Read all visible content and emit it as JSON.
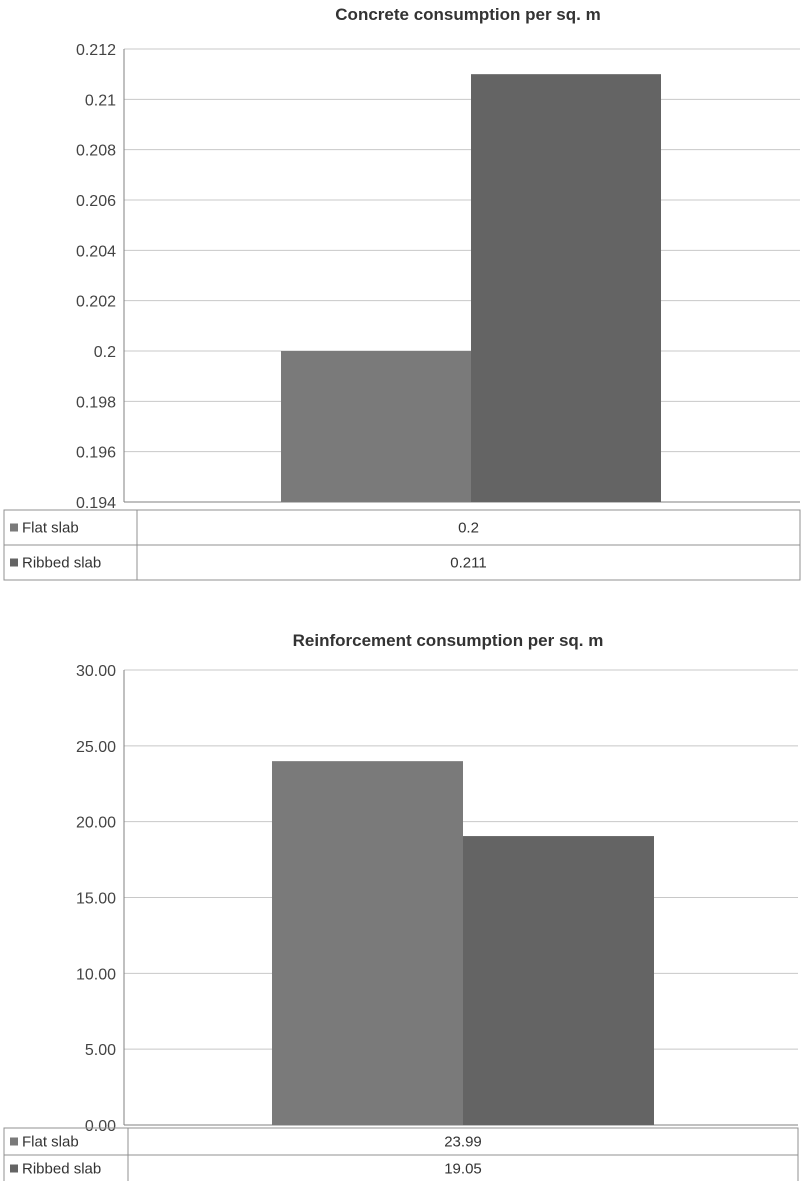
{
  "chart_data": [
    {
      "type": "bar",
      "title": "Concrete consumption per sq. m",
      "categories": [
        ""
      ],
      "series": [
        {
          "name": "Flat slab",
          "values": [
            0.2
          ],
          "color": "#7a7a7a"
        },
        {
          "name": "Ribbed slab",
          "values": [
            0.211
          ],
          "color": "#646464"
        }
      ],
      "y_ticks": [
        "0.194",
        "0.196",
        "0.198",
        "0.2",
        "0.202",
        "0.204",
        "0.206",
        "0.208",
        "0.21",
        "0.212"
      ],
      "ylim": [
        0.194,
        0.212
      ],
      "table_values": [
        "0.2",
        "0.211"
      ],
      "grid": true,
      "legend": "data table below chart"
    },
    {
      "type": "bar",
      "title": "Reinforcement consumption per sq. m",
      "categories": [
        ""
      ],
      "series": [
        {
          "name": "Flat slab",
          "values": [
            23.99
          ],
          "color": "#7a7a7a"
        },
        {
          "name": "Ribbed slab",
          "values": [
            19.05
          ],
          "color": "#646464"
        }
      ],
      "y_ticks": [
        "0.00",
        "5.00",
        "10.00",
        "15.00",
        "20.00",
        "25.00",
        "30.00"
      ],
      "ylim": [
        0,
        30
      ],
      "table_values": [
        "23.99",
        "19.05"
      ],
      "grid": true,
      "legend": "data table below chart"
    }
  ]
}
